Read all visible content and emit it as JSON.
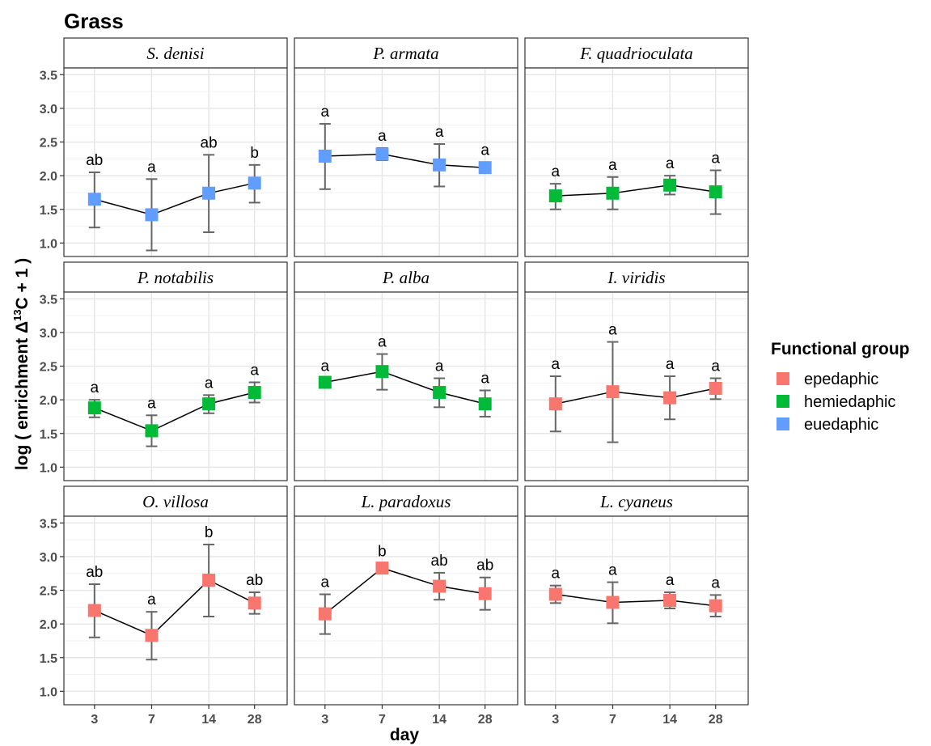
{
  "chart_data": {
    "type": "line",
    "title": "Grass",
    "xlabel": "day",
    "ylabel_prefix": "log ( enrichment Δ",
    "ylabel_sup": "13",
    "ylabel_suffix": "C  + 1 )",
    "categories": [
      "3",
      "7",
      "14",
      "28"
    ],
    "ylim": [
      0.8,
      3.6
    ],
    "yticks": [
      "1.0",
      "1.5",
      "2.0",
      "2.5",
      "3.0",
      "3.5"
    ],
    "grid": true,
    "legend": {
      "title": "Functional group",
      "position": "right",
      "items": [
        {
          "label": "epedaphic",
          "color": "#F8766D"
        },
        {
          "label": "hemiedaphic",
          "color": "#00BA38"
        },
        {
          "label": "euedaphic",
          "color": "#619CFF"
        }
      ]
    },
    "panels": [
      {
        "name": "S. denisi",
        "group": "euedaphic",
        "color": "#619CFF",
        "values": [
          1.65,
          1.42,
          1.74,
          1.89
        ],
        "err_low": [
          1.23,
          0.89,
          1.16,
          1.6
        ],
        "err_high": [
          2.05,
          1.95,
          2.31,
          2.16
        ],
        "letters": [
          "ab",
          "a",
          "ab",
          "b"
        ]
      },
      {
        "name": "P. armata",
        "group": "euedaphic",
        "color": "#619CFF",
        "values": [
          2.29,
          2.32,
          2.16,
          2.12
        ],
        "err_low": [
          1.8,
          2.23,
          1.84,
          2.04
        ],
        "err_high": [
          2.77,
          2.41,
          2.47,
          2.2
        ],
        "letters": [
          "a",
          "a",
          "a",
          "a"
        ]
      },
      {
        "name": "F. quadrioculata",
        "group": "hemiedaphic",
        "color": "#00BA38",
        "values": [
          1.7,
          1.74,
          1.86,
          1.76
        ],
        "err_low": [
          1.5,
          1.5,
          1.72,
          1.43
        ],
        "err_high": [
          1.88,
          1.98,
          2.0,
          2.08
        ],
        "letters": [
          "a",
          "a",
          "a",
          "a"
        ]
      },
      {
        "name": "P. notabilis",
        "group": "hemiedaphic",
        "color": "#00BA38",
        "values": [
          1.88,
          1.54,
          1.94,
          2.11
        ],
        "err_low": [
          1.74,
          1.31,
          1.8,
          1.96
        ],
        "err_high": [
          2.0,
          1.77,
          2.07,
          2.26
        ],
        "letters": [
          "a",
          "a",
          "a",
          "a"
        ]
      },
      {
        "name": "P. alba",
        "group": "hemiedaphic",
        "color": "#00BA38",
        "values": [
          2.26,
          2.42,
          2.11,
          1.94
        ],
        "err_low": [
          2.2,
          2.15,
          1.89,
          1.75
        ],
        "err_high": [
          2.32,
          2.68,
          2.32,
          2.14
        ],
        "letters": [
          "a",
          "a",
          "a",
          "a"
        ]
      },
      {
        "name": "I. viridis",
        "group": "epedaphic",
        "color": "#F8766D",
        "values": [
          1.94,
          2.12,
          2.03,
          2.17
        ],
        "err_low": [
          1.53,
          1.37,
          1.71,
          2.01
        ],
        "err_high": [
          2.35,
          2.86,
          2.35,
          2.32
        ],
        "letters": [
          "a",
          "a",
          "a",
          "a"
        ]
      },
      {
        "name": "O. villosa",
        "group": "epedaphic",
        "color": "#F8766D",
        "values": [
          2.2,
          1.83,
          2.65,
          2.31
        ],
        "err_low": [
          1.8,
          1.47,
          2.11,
          2.15
        ],
        "err_high": [
          2.59,
          2.18,
          3.18,
          2.47
        ],
        "letters": [
          "ab",
          "a",
          "b",
          "ab"
        ]
      },
      {
        "name": "L. paradoxus",
        "group": "epedaphic",
        "color": "#F8766D",
        "values": [
          2.15,
          2.83,
          2.56,
          2.45
        ],
        "err_low": [
          1.85,
          2.76,
          2.36,
          2.21
        ],
        "err_high": [
          2.44,
          2.9,
          2.76,
          2.69
        ],
        "letters": [
          "a",
          "b",
          "ab",
          "ab"
        ]
      },
      {
        "name": "L. cyaneus",
        "group": "epedaphic",
        "color": "#F8766D",
        "values": [
          2.44,
          2.32,
          2.35,
          2.27
        ],
        "err_low": [
          2.31,
          2.01,
          2.23,
          2.11
        ],
        "err_high": [
          2.57,
          2.62,
          2.47,
          2.43
        ],
        "letters": [
          "a",
          "a",
          "a",
          "a"
        ]
      }
    ]
  }
}
